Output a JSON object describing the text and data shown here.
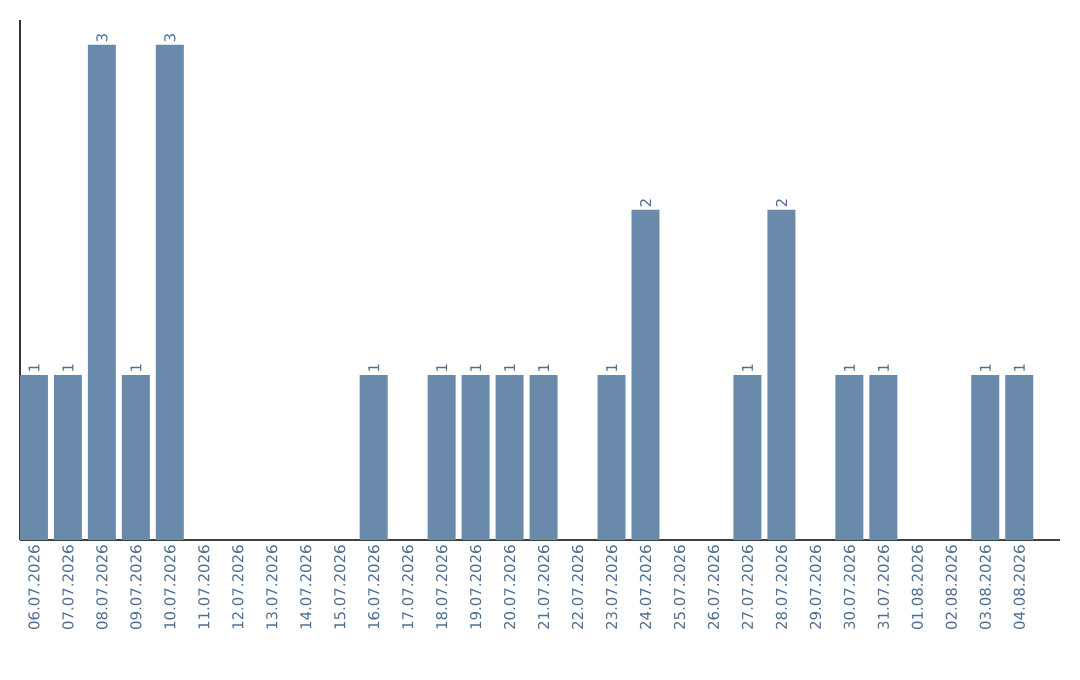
{
  "chart_data": {
    "type": "bar",
    "categories": [
      "06.07.2026",
      "07.07.2026",
      "08.07.2026",
      "09.07.2026",
      "10.07.2026",
      "11.07.2026",
      "12.07.2026",
      "13.07.2026",
      "14.07.2026",
      "15.07.2026",
      "16.07.2026",
      "17.07.2026",
      "18.07.2026",
      "19.07.2026",
      "20.07.2026",
      "21.07.2026",
      "22.07.2026",
      "23.07.2026",
      "24.07.2026",
      "25.07.2026",
      "26.07.2026",
      "27.07.2026",
      "28.07.2026",
      "29.07.2026",
      "30.07.2026",
      "31.07.2026",
      "01.08.2026",
      "02.08.2026",
      "03.08.2026",
      "04.08.2026"
    ],
    "values": [
      1,
      1,
      3,
      1,
      3,
      0,
      0,
      0,
      0,
      0,
      1,
      0,
      1,
      1,
      1,
      1,
      0,
      1,
      2,
      0,
      0,
      1,
      2,
      0,
      1,
      1,
      0,
      0,
      1,
      1
    ],
    "value_labels": [
      "1",
      "1",
      "3",
      "1",
      "3",
      null,
      null,
      null,
      null,
      null,
      "1",
      null,
      "1",
      "1",
      "1",
      "1",
      null,
      "1",
      "2",
      null,
      null,
      "1",
      "2",
      null,
      "1",
      "1",
      null,
      null,
      "1",
      "1"
    ],
    "color": "#6a8aab",
    "ylim": [
      0,
      3.15
    ],
    "tick_labels": "x",
    "grid": false
  }
}
